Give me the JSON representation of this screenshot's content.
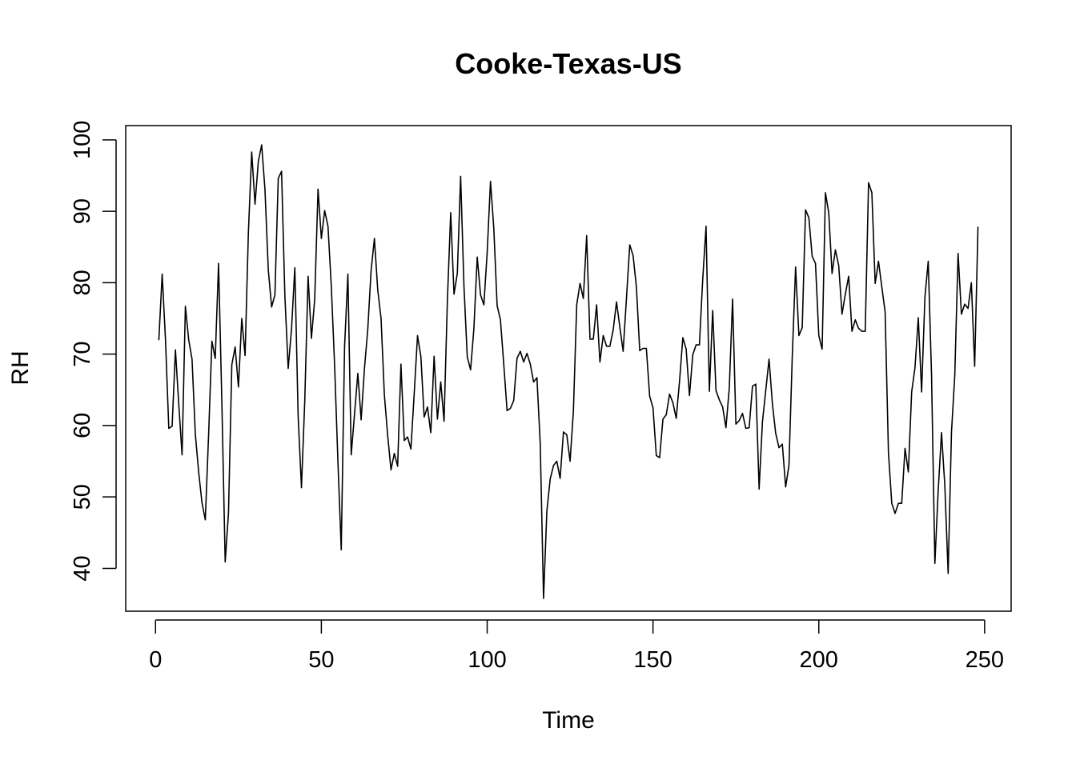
{
  "chart_data": {
    "type": "line",
    "title": "Cooke-Texas-US",
    "xlabel": "Time",
    "ylabel": "RH",
    "xlim": [
      -9,
      258
    ],
    "ylim": [
      34,
      102
    ],
    "x_ticks": [
      0,
      50,
      100,
      150,
      200,
      250
    ],
    "y_ticks": [
      40,
      50,
      60,
      70,
      80,
      90,
      100
    ],
    "grid": false,
    "legend": "none",
    "line_color": "#000000",
    "series": [
      {
        "x_start": 1,
        "values": [
          72.0,
          81.2,
          72.0,
          59.6,
          59.9,
          70.6,
          63.0,
          55.9,
          76.7,
          72.0,
          69.3,
          58.8,
          53.5,
          49.2,
          46.8,
          58.7,
          71.8,
          69.4,
          82.7,
          63.2,
          40.9,
          47.8,
          68.5,
          71.0,
          65.4,
          75.0,
          69.8,
          87.1,
          98.3,
          91.0,
          97.0,
          99.3,
          93.0,
          81.8,
          76.6,
          78.3,
          94.6,
          95.6,
          78.2,
          68.0,
          73.5,
          82.1,
          61.3,
          51.3,
          63.5,
          80.9,
          72.2,
          77.7,
          93.1,
          86.2,
          90.1,
          87.9,
          79.5,
          68.4,
          54.9,
          42.6,
          71.0,
          81.2,
          55.9,
          61.6,
          67.3,
          60.8,
          68.0,
          73.5,
          81.7,
          86.2,
          79.0,
          75.0,
          64.3,
          58.6,
          53.8,
          56.1,
          54.3,
          68.6,
          57.9,
          58.4,
          56.7,
          64.5,
          72.6,
          69.7,
          61.2,
          62.6,
          59.0,
          69.7,
          60.9,
          66.1,
          60.6,
          77.5,
          89.8,
          78.4,
          81.3,
          94.9,
          79.5,
          69.6,
          67.8,
          73.6,
          83.6,
          78.3,
          76.9,
          84.2,
          94.2,
          87.6,
          76.8,
          74.8,
          68.6,
          62.1,
          62.4,
          63.5,
          69.4,
          70.4,
          68.9,
          70.1,
          68.6,
          66.1,
          66.7,
          57.5,
          35.8,
          48.0,
          52.5,
          54.4,
          55.0,
          52.6,
          59.1,
          58.7,
          55.0,
          62.0,
          76.9,
          79.9,
          77.8,
          86.6,
          72.1,
          72.1,
          76.9,
          68.9,
          72.6,
          71.1,
          71.1,
          73.4,
          77.3,
          73.8,
          70.4,
          77.8,
          85.3,
          83.8,
          79.4,
          70.5,
          70.8,
          70.8,
          64.1,
          62.5,
          55.8,
          55.5,
          60.9,
          61.5,
          64.4,
          63.2,
          61.0,
          66.2,
          72.3,
          70.7,
          64.2,
          69.9,
          71.3,
          71.3,
          80.5,
          87.9,
          64.8,
          76.1,
          64.9,
          63.6,
          62.6,
          59.7,
          65.2,
          77.7,
          60.2,
          60.7,
          61.7,
          59.6,
          59.7,
          65.5,
          65.8,
          51.1,
          60.5,
          64.9,
          69.3,
          63.1,
          58.9,
          56.9,
          57.4,
          51.4,
          54.4,
          69.7,
          82.2,
          72.6,
          73.7,
          90.2,
          89.1,
          83.7,
          82.7,
          72.6,
          70.7,
          92.6,
          89.8,
          81.3,
          84.6,
          82.4,
          75.6,
          78.4,
          80.9,
          73.2,
          74.8,
          73.6,
          73.2,
          73.2,
          94.0,
          92.6,
          79.9,
          83.0,
          79.4,
          75.9,
          56.2,
          49.1,
          47.7,
          49.1,
          49.1,
          56.8,
          53.5,
          64.7,
          68.1,
          75.1,
          64.7,
          78.0,
          83.0,
          67.0,
          40.7,
          50.9,
          59.0,
          51.6,
          39.3,
          59.0,
          67.0,
          84.1,
          75.6,
          77.0,
          76.4,
          80.0,
          68.3,
          87.8
        ]
      }
    ]
  }
}
